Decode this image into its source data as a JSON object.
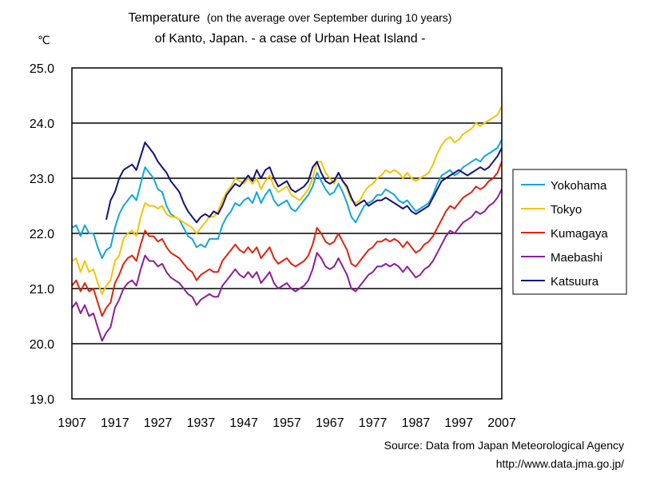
{
  "chart_data": {
    "type": "line",
    "title_main": "Temperature",
    "title_paren": "(on the average over September during 10 years)",
    "title_line2": "of Kanto, Japan. - a case of Urban Heat Island -",
    "ylabel": "℃",
    "xlabel": "",
    "xlim": [
      1907,
      2007
    ],
    "ylim": [
      19.0,
      25.0
    ],
    "x_ticks": [
      "1907",
      "1917",
      "1927",
      "1937",
      "1947",
      "1957",
      "1967",
      "1977",
      "1987",
      "1997",
      "2007"
    ],
    "y_ticks": [
      "25.0",
      "24.0",
      "23.0",
      "22.0",
      "21.0",
      "20.0",
      "19.0"
    ],
    "grid": "horizontal",
    "legend_position": "right",
    "source": "Source: Data from Japan Meteorological Agency",
    "source_url": "http://www.data.jma.go.jp/",
    "series": [
      {
        "name": "Yokohama",
        "color": "#12a5dc",
        "x": [
          1907,
          1908,
          1909,
          1910,
          1911,
          1912,
          1913,
          1914,
          1915,
          1916,
          1917,
          1918,
          1919,
          1920,
          1921,
          1922,
          1923,
          1924,
          1925,
          1926,
          1927,
          1928,
          1929,
          1930,
          1931,
          1932,
          1933,
          1934,
          1935,
          1936,
          1937,
          1938,
          1939,
          1940,
          1941,
          1942,
          1943,
          1944,
          1945,
          1946,
          1947,
          1948,
          1949,
          1950,
          1951,
          1952,
          1953,
          1954,
          1955,
          1956,
          1957,
          1958,
          1959,
          1960,
          1961,
          1962,
          1963,
          1964,
          1965,
          1966,
          1967,
          1968,
          1969,
          1970,
          1971,
          1972,
          1973,
          1974,
          1975,
          1976,
          1977,
          1978,
          1979,
          1980,
          1981,
          1982,
          1983,
          1984,
          1985,
          1986,
          1987,
          1988,
          1989,
          1990,
          1991,
          1992,
          1993,
          1994,
          1995,
          1996,
          1997,
          1998,
          1999,
          2000,
          2001,
          2002,
          2003,
          2004,
          2005,
          2006,
          2007
        ],
        "y": [
          22.1,
          22.15,
          21.95,
          22.15,
          22.0,
          22.0,
          21.75,
          21.55,
          21.7,
          21.75,
          22.1,
          22.35,
          22.5,
          22.6,
          22.7,
          22.6,
          22.9,
          23.2,
          23.1,
          23.0,
          22.8,
          22.75,
          22.5,
          22.35,
          22.3,
          22.25,
          22.1,
          21.95,
          21.9,
          21.75,
          21.8,
          21.75,
          21.9,
          21.9,
          21.9,
          22.15,
          22.3,
          22.4,
          22.55,
          22.5,
          22.6,
          22.65,
          22.55,
          22.75,
          22.55,
          22.7,
          22.8,
          22.6,
          22.5,
          22.55,
          22.6,
          22.45,
          22.4,
          22.5,
          22.6,
          22.7,
          22.85,
          23.1,
          22.95,
          22.8,
          22.7,
          22.75,
          22.9,
          22.75,
          22.55,
          22.3,
          22.2,
          22.35,
          22.5,
          22.55,
          22.6,
          22.7,
          22.7,
          22.8,
          22.75,
          22.7,
          22.6,
          22.55,
          22.6,
          22.5,
          22.4,
          22.45,
          22.5,
          22.55,
          22.7,
          22.9,
          23.05,
          23.1,
          23.15,
          23.05,
          23.1,
          23.2,
          23.25,
          23.3,
          23.35,
          23.3,
          23.4,
          23.45,
          23.5,
          23.55,
          23.7
        ]
      },
      {
        "name": "Tokyo",
        "color": "#f5c400",
        "x": [
          1907,
          1908,
          1909,
          1910,
          1911,
          1912,
          1913,
          1914,
          1915,
          1916,
          1917,
          1918,
          1919,
          1920,
          1921,
          1922,
          1923,
          1924,
          1925,
          1926,
          1927,
          1928,
          1929,
          1930,
          1931,
          1932,
          1933,
          1934,
          1935,
          1936,
          1937,
          1938,
          1939,
          1940,
          1941,
          1942,
          1943,
          1944,
          1945,
          1946,
          1947,
          1948,
          1949,
          1950,
          1951,
          1952,
          1953,
          1954,
          1955,
          1956,
          1957,
          1958,
          1959,
          1960,
          1961,
          1962,
          1963,
          1964,
          1965,
          1966,
          1967,
          1968,
          1969,
          1970,
          1971,
          1972,
          1973,
          1974,
          1975,
          1976,
          1977,
          1978,
          1979,
          1980,
          1981,
          1982,
          1983,
          1984,
          1985,
          1986,
          1987,
          1988,
          1989,
          1990,
          1991,
          1992,
          1993,
          1994,
          1995,
          1996,
          1997,
          1998,
          1999,
          2000,
          2001,
          2002,
          2003,
          2004,
          2005,
          2006,
          2007
        ],
        "y": [
          21.5,
          21.55,
          21.3,
          21.5,
          21.3,
          21.35,
          21.1,
          20.9,
          21.05,
          21.15,
          21.5,
          21.6,
          21.9,
          22.0,
          22.05,
          21.95,
          22.3,
          22.55,
          22.5,
          22.5,
          22.45,
          22.5,
          22.35,
          22.3,
          22.3,
          22.25,
          22.2,
          22.15,
          22.1,
          22.0,
          22.1,
          22.2,
          22.3,
          22.3,
          22.4,
          22.6,
          22.75,
          22.85,
          23.0,
          22.95,
          22.9,
          23.0,
          22.9,
          23.0,
          22.8,
          22.95,
          23.05,
          22.85,
          22.75,
          22.8,
          22.85,
          22.7,
          22.65,
          22.6,
          22.7,
          22.8,
          23.0,
          23.3,
          23.3,
          23.1,
          23.0,
          22.9,
          23.1,
          22.95,
          22.8,
          22.6,
          22.55,
          22.6,
          22.75,
          22.85,
          22.9,
          23.0,
          23.05,
          23.15,
          23.1,
          23.15,
          23.1,
          23.0,
          23.1,
          23.0,
          22.95,
          23.0,
          23.05,
          23.1,
          23.25,
          23.45,
          23.6,
          23.7,
          23.75,
          23.65,
          23.7,
          23.8,
          23.85,
          23.9,
          24.0,
          23.95,
          24.0,
          24.05,
          24.1,
          24.15,
          24.3
        ]
      },
      {
        "name": "Kumagaya",
        "color": "#e0230e",
        "x": [
          1907,
          1908,
          1909,
          1910,
          1911,
          1912,
          1913,
          1914,
          1915,
          1916,
          1917,
          1918,
          1919,
          1920,
          1921,
          1922,
          1923,
          1924,
          1925,
          1926,
          1927,
          1928,
          1929,
          1930,
          1931,
          1932,
          1933,
          1934,
          1935,
          1936,
          1937,
          1938,
          1939,
          1940,
          1941,
          1942,
          1943,
          1944,
          1945,
          1946,
          1947,
          1948,
          1949,
          1950,
          1951,
          1952,
          1953,
          1954,
          1955,
          1956,
          1957,
          1958,
          1959,
          1960,
          1961,
          1962,
          1963,
          1964,
          1965,
          1966,
          1967,
          1968,
          1969,
          1970,
          1971,
          1972,
          1973,
          1974,
          1975,
          1976,
          1977,
          1978,
          1979,
          1980,
          1981,
          1982,
          1983,
          1984,
          1985,
          1986,
          1987,
          1988,
          1989,
          1990,
          1991,
          1992,
          1993,
          1994,
          1995,
          1996,
          1997,
          1998,
          1999,
          2000,
          2001,
          2002,
          2003,
          2004,
          2005,
          2006,
          2007
        ],
        "y": [
          21.05,
          21.15,
          20.95,
          21.1,
          20.95,
          21.0,
          20.75,
          20.5,
          20.65,
          20.75,
          21.1,
          21.25,
          21.45,
          21.55,
          21.6,
          21.5,
          21.8,
          22.05,
          21.95,
          21.95,
          21.85,
          21.9,
          21.75,
          21.65,
          21.6,
          21.55,
          21.45,
          21.35,
          21.3,
          21.15,
          21.25,
          21.3,
          21.35,
          21.3,
          21.3,
          21.5,
          21.6,
          21.7,
          21.8,
          21.7,
          21.65,
          21.75,
          21.65,
          21.75,
          21.55,
          21.65,
          21.75,
          21.55,
          21.45,
          21.5,
          21.55,
          21.45,
          21.4,
          21.45,
          21.5,
          21.6,
          21.8,
          22.1,
          22.0,
          21.85,
          21.8,
          21.85,
          22.0,
          21.85,
          21.7,
          21.45,
          21.4,
          21.5,
          21.6,
          21.7,
          21.75,
          21.85,
          21.85,
          21.9,
          21.85,
          21.9,
          21.85,
          21.75,
          21.85,
          21.75,
          21.65,
          21.7,
          21.8,
          21.85,
          21.95,
          22.1,
          22.25,
          22.4,
          22.5,
          22.45,
          22.55,
          22.65,
          22.7,
          22.75,
          22.85,
          22.8,
          22.85,
          22.95,
          23.0,
          23.1,
          23.3
        ]
      },
      {
        "name": "Maebashi",
        "color": "#8b1e96",
        "x": [
          1907,
          1908,
          1909,
          1910,
          1911,
          1912,
          1913,
          1914,
          1915,
          1916,
          1917,
          1918,
          1919,
          1920,
          1921,
          1922,
          1923,
          1924,
          1925,
          1926,
          1927,
          1928,
          1929,
          1930,
          1931,
          1932,
          1933,
          1934,
          1935,
          1936,
          1937,
          1938,
          1939,
          1940,
          1941,
          1942,
          1943,
          1944,
          1945,
          1946,
          1947,
          1948,
          1949,
          1950,
          1951,
          1952,
          1953,
          1954,
          1955,
          1956,
          1957,
          1958,
          1959,
          1960,
          1961,
          1962,
          1963,
          1964,
          1965,
          1966,
          1967,
          1968,
          1969,
          1970,
          1971,
          1972,
          1973,
          1974,
          1975,
          1976,
          1977,
          1978,
          1979,
          1980,
          1981,
          1982,
          1983,
          1984,
          1985,
          1986,
          1987,
          1988,
          1989,
          1990,
          1991,
          1992,
          1993,
          1994,
          1995,
          1996,
          1997,
          1998,
          1999,
          2000,
          2001,
          2002,
          2003,
          2004,
          2005,
          2006,
          2007
        ],
        "y": [
          20.65,
          20.75,
          20.55,
          20.7,
          20.5,
          20.55,
          20.3,
          20.05,
          20.2,
          20.3,
          20.65,
          20.8,
          21.0,
          21.1,
          21.15,
          21.05,
          21.35,
          21.6,
          21.5,
          21.5,
          21.4,
          21.45,
          21.3,
          21.2,
          21.15,
          21.1,
          21.0,
          20.9,
          20.85,
          20.7,
          20.8,
          20.85,
          20.9,
          20.85,
          20.85,
          21.05,
          21.15,
          21.25,
          21.35,
          21.25,
          21.2,
          21.3,
          21.2,
          21.3,
          21.1,
          21.2,
          21.3,
          21.1,
          21.0,
          21.05,
          21.1,
          21.0,
          20.95,
          21.0,
          21.05,
          21.15,
          21.35,
          21.65,
          21.55,
          21.4,
          21.35,
          21.4,
          21.55,
          21.4,
          21.25,
          21.0,
          20.95,
          21.05,
          21.15,
          21.25,
          21.3,
          21.4,
          21.4,
          21.45,
          21.4,
          21.45,
          21.4,
          21.3,
          21.4,
          21.3,
          21.2,
          21.25,
          21.35,
          21.4,
          21.5,
          21.65,
          21.8,
          21.95,
          22.05,
          22.0,
          22.1,
          22.2,
          22.25,
          22.3,
          22.4,
          22.35,
          22.4,
          22.5,
          22.55,
          22.65,
          22.8
        ]
      },
      {
        "name": "Katsuura",
        "color": "#12127a",
        "x": [
          1915,
          1916,
          1917,
          1918,
          1919,
          1920,
          1921,
          1922,
          1923,
          1924,
          1925,
          1926,
          1927,
          1928,
          1929,
          1930,
          1931,
          1932,
          1933,
          1934,
          1935,
          1936,
          1937,
          1938,
          1939,
          1940,
          1941,
          1942,
          1943,
          1944,
          1945,
          1946,
          1947,
          1948,
          1949,
          1950,
          1951,
          1952,
          1953,
          1954,
          1955,
          1956,
          1957,
          1958,
          1959,
          1960,
          1961,
          1962,
          1963,
          1964,
          1965,
          1966,
          1967,
          1968,
          1969,
          1970,
          1971,
          1972,
          1973,
          1974,
          1975,
          1976,
          1977,
          1978,
          1979,
          1980,
          1981,
          1982,
          1983,
          1984,
          1985,
          1986,
          1987,
          1988,
          1989,
          1990,
          1991,
          1992,
          1993,
          1994,
          1995,
          1996,
          1997,
          1998,
          1999,
          2000,
          2001,
          2002,
          2003,
          2004,
          2005,
          2006,
          2007
        ],
        "y": [
          22.25,
          22.6,
          22.75,
          23.0,
          23.15,
          23.2,
          23.25,
          23.15,
          23.4,
          23.65,
          23.55,
          23.45,
          23.3,
          23.2,
          23.1,
          22.95,
          22.85,
          22.75,
          22.55,
          22.4,
          22.3,
          22.2,
          22.3,
          22.35,
          22.3,
          22.4,
          22.35,
          22.5,
          22.7,
          22.8,
          22.9,
          22.85,
          22.95,
          23.05,
          22.95,
          23.15,
          23.0,
          23.15,
          23.2,
          23.0,
          22.85,
          22.9,
          22.95,
          22.8,
          22.75,
          22.8,
          22.85,
          22.95,
          23.2,
          23.3,
          23.1,
          22.95,
          22.9,
          22.95,
          23.1,
          22.95,
          22.85,
          22.65,
          22.5,
          22.55,
          22.6,
          22.5,
          22.55,
          22.6,
          22.6,
          22.65,
          22.6,
          22.55,
          22.5,
          22.45,
          22.5,
          22.4,
          22.35,
          22.4,
          22.45,
          22.5,
          22.65,
          22.8,
          22.95,
          23.0,
          23.05,
          23.1,
          23.15,
          23.1,
          23.05,
          23.1,
          23.15,
          23.2,
          23.15,
          23.2,
          23.3,
          23.4,
          23.55
        ]
      }
    ]
  }
}
